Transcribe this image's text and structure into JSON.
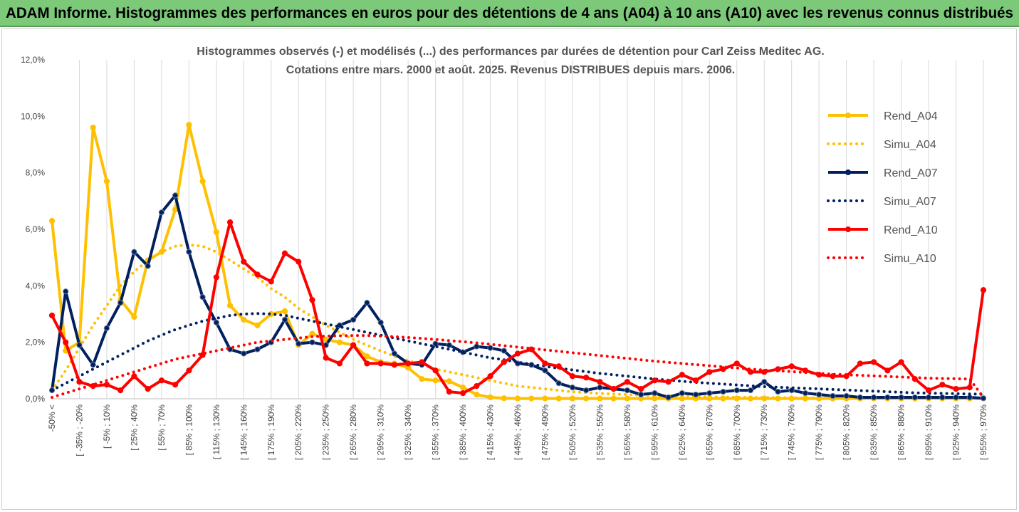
{
  "banner": {
    "title": "ADAM Informe. Histogrammes des performances en euros pour des détentions de 4 ans (A04) à 10 ans (A10) avec les revenus connus distribués"
  },
  "colors": {
    "banner_bg": "#7cc97a",
    "a04": "#ffc000",
    "a07": "#002060",
    "a10": "#ff0000",
    "grid": "#d9d9d9"
  },
  "chart_data": {
    "type": "line",
    "title": "Histogrammes observés (-) et modélisés (...) des performances par durées de détention pour Carl Zeiss Meditec AG.",
    "subtitle": "Cotations entre mars. 2000 et août. 2025. Revenus DISTRIBUES depuis mars. 2006.",
    "ylim": [
      0,
      12
    ],
    "y_ticks": [
      "0,0%",
      "2,0%",
      "4,0%",
      "6,0%",
      "8,0%",
      "10,0%",
      "12,0%"
    ],
    "y_tick_values": [
      0,
      2,
      4,
      6,
      8,
      10,
      12
    ],
    "grid": "vertical",
    "legend_position": "right",
    "x_tick_labels": [
      "-50% <",
      "[ -35% ; -20%",
      "[ -5% ; 10%",
      "[ 25% ; 40%",
      "[ 55% ; 70%",
      "[ 85% ; 100%",
      "[ 115% ; 130%",
      "[ 145% ; 160%",
      "[ 175% ; 190%",
      "[ 205% ; 220%",
      "[ 235% ; 250%",
      "[ 265% ; 280%",
      "[ 295% ; 310%",
      "[ 325% ; 340%",
      "[ 355% ; 370%",
      "[ 385% ; 400%",
      "[ 415% ; 430%",
      "[ 445% ; 460%",
      "[ 475% ; 490%",
      "[ 505% ; 520%",
      "[ 535% ; 550%",
      "[ 565% ; 580%",
      "[ 595% ; 610%",
      "[ 625% ; 640%",
      "[ 655% ; 670%",
      "[ 685% ; 700%",
      "[ 715% ; 730%",
      "[ 745% ; 760%",
      "[ 775% ; 790%",
      "[ 805% ; 820%",
      "[ 835% ; 850%",
      "[ 865% ; 880%",
      "[ 895% ; 910%",
      "[ 925% ; 940%",
      "[ 955% ; 970%"
    ],
    "x_count": 69,
    "series": [
      {
        "name": "Rend_A04",
        "style": "solid-markers",
        "color": "#ffc000",
        "values": [
          6.3,
          1.7,
          2.0,
          9.6,
          7.7,
          3.5,
          2.9,
          4.9,
          5.2,
          6.7,
          9.7,
          7.7,
          5.9,
          3.3,
          2.8,
          2.6,
          3.0,
          3.1,
          1.9,
          2.3,
          2.1,
          2.0,
          1.9,
          1.5,
          1.3,
          1.25,
          1.1,
          0.7,
          0.65,
          0.62,
          0.4,
          0.15,
          0.05,
          0.02,
          0.01,
          0.01,
          0.01,
          0.01,
          0.01,
          0.01,
          0.01,
          0.01,
          0.01,
          0.01,
          0.01,
          0.01,
          0.01,
          0.01,
          0.01,
          0.01,
          0.01,
          0.01,
          0.01,
          0.01,
          0.01,
          0.01,
          0.01,
          0.01,
          0.01,
          0.01,
          0.01,
          0.01,
          0.01,
          0.01,
          0.01,
          0.01,
          0.01,
          0.01,
          0.01
        ]
      },
      {
        "name": "Simu_A04",
        "style": "dotted",
        "color": "#ffc000",
        "values": [
          0.3,
          1.0,
          1.8,
          2.6,
          3.3,
          4.0,
          4.5,
          4.9,
          5.2,
          5.4,
          5.45,
          5.4,
          5.2,
          4.9,
          4.6,
          4.3,
          3.9,
          3.6,
          3.2,
          2.9,
          2.6,
          2.35,
          2.1,
          1.9,
          1.7,
          1.5,
          1.35,
          1.2,
          1.05,
          0.95,
          0.85,
          0.75,
          0.65,
          0.55,
          0.45,
          0.4,
          0.35,
          0.3,
          0.25,
          0.22,
          0.19,
          0.17,
          0.15,
          0.13,
          0.11,
          0.1,
          0.09,
          0.08,
          0.07,
          0.06,
          0.05,
          0.05,
          0.04,
          0.04,
          0.03,
          0.03,
          0.03,
          0.02,
          0.02,
          0.02,
          0.02,
          0.02,
          0.01,
          0.01,
          0.01,
          0.01,
          0.01,
          0.01,
          0.01
        ]
      },
      {
        "name": "Rend_A07",
        "style": "solid-markers",
        "color": "#002060",
        "values": [
          0.3,
          3.8,
          1.9,
          1.2,
          2.5,
          3.4,
          5.2,
          4.7,
          6.6,
          7.2,
          5.2,
          3.6,
          2.7,
          1.75,
          1.6,
          1.75,
          2.0,
          2.8,
          1.95,
          2.0,
          1.9,
          2.6,
          2.8,
          3.4,
          2.7,
          1.6,
          1.25,
          1.2,
          1.95,
          1.9,
          1.65,
          1.85,
          1.8,
          1.7,
          1.25,
          1.2,
          1.0,
          0.55,
          0.4,
          0.3,
          0.4,
          0.35,
          0.3,
          0.15,
          0.2,
          0.05,
          0.2,
          0.15,
          0.2,
          0.25,
          0.3,
          0.3,
          0.6,
          0.25,
          0.3,
          0.2,
          0.15,
          0.1,
          0.1,
          0.05,
          0.05,
          0.05,
          0.05,
          0.05,
          0.05,
          0.05,
          0.05,
          0.05,
          0.02
        ]
      },
      {
        "name": "Simu_A07",
        "style": "dotted",
        "color": "#002060",
        "values": [
          0.3,
          0.55,
          0.8,
          1.05,
          1.3,
          1.55,
          1.8,
          2.05,
          2.25,
          2.45,
          2.6,
          2.75,
          2.85,
          2.95,
          3.0,
          3.02,
          3.0,
          2.95,
          2.85,
          2.75,
          2.65,
          2.55,
          2.45,
          2.35,
          2.25,
          2.15,
          2.05,
          1.95,
          1.85,
          1.75,
          1.65,
          1.55,
          1.45,
          1.38,
          1.3,
          1.22,
          1.15,
          1.08,
          1.02,
          0.96,
          0.9,
          0.85,
          0.8,
          0.75,
          0.7,
          0.66,
          0.62,
          0.58,
          0.55,
          0.52,
          0.49,
          0.46,
          0.43,
          0.41,
          0.39,
          0.37,
          0.35,
          0.33,
          0.31,
          0.29,
          0.27,
          0.25,
          0.23,
          0.21,
          0.2,
          0.19,
          0.18,
          0.17,
          0.16
        ]
      },
      {
        "name": "Rend_A10",
        "style": "solid-markers",
        "color": "#ff0000",
        "values": [
          2.95,
          2.0,
          0.6,
          0.45,
          0.5,
          0.3,
          0.8,
          0.35,
          0.65,
          0.5,
          1.0,
          1.55,
          4.3,
          6.25,
          4.85,
          4.4,
          4.15,
          5.15,
          4.85,
          3.5,
          1.45,
          1.25,
          1.9,
          1.25,
          1.25,
          1.2,
          1.25,
          1.3,
          1.0,
          0.25,
          0.2,
          0.45,
          0.8,
          1.3,
          1.6,
          1.75,
          1.25,
          1.15,
          0.8,
          0.75,
          0.6,
          0.35,
          0.6,
          0.35,
          0.65,
          0.6,
          0.85,
          0.65,
          0.95,
          1.05,
          1.25,
          0.95,
          0.95,
          1.05,
          1.15,
          1.0,
          0.85,
          0.8,
          0.8,
          1.25,
          1.3,
          1.0,
          1.3,
          0.7,
          0.3,
          0.5,
          0.35,
          0.4,
          3.85
        ]
      },
      {
        "name": "Simu_A10",
        "style": "dotted",
        "color": "#ff0000",
        "values": [
          0.05,
          0.2,
          0.35,
          0.5,
          0.65,
          0.8,
          0.95,
          1.1,
          1.25,
          1.4,
          1.5,
          1.6,
          1.7,
          1.8,
          1.9,
          2.0,
          2.05,
          2.1,
          2.15,
          2.2,
          2.22,
          2.23,
          2.24,
          2.24,
          2.22,
          2.2,
          2.17,
          2.14,
          2.1,
          2.06,
          2.02,
          1.98,
          1.93,
          1.88,
          1.83,
          1.78,
          1.73,
          1.68,
          1.63,
          1.58,
          1.53,
          1.48,
          1.43,
          1.38,
          1.33,
          1.29,
          1.25,
          1.21,
          1.17,
          1.13,
          1.09,
          1.05,
          1.02,
          0.99,
          0.96,
          0.93,
          0.9,
          0.87,
          0.85,
          0.83,
          0.81,
          0.79,
          0.77,
          0.75,
          0.73,
          0.72,
          0.71,
          0.7,
          0.05
        ]
      }
    ]
  }
}
